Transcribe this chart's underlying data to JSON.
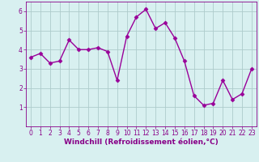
{
  "x": [
    0,
    1,
    2,
    3,
    4,
    5,
    6,
    7,
    8,
    9,
    10,
    11,
    12,
    13,
    14,
    15,
    16,
    17,
    18,
    19,
    20,
    21,
    22,
    23
  ],
  "y": [
    3.6,
    3.8,
    3.3,
    3.4,
    4.5,
    4.0,
    4.0,
    4.1,
    3.9,
    2.4,
    4.7,
    5.7,
    6.1,
    5.1,
    5.4,
    4.6,
    3.4,
    1.6,
    1.1,
    1.2,
    2.4,
    1.4,
    1.7,
    3.0
  ],
  "line_color": "#990099",
  "marker": "D",
  "marker_size": 2.5,
  "linewidth": 1.0,
  "xlabel": "Windchill (Refroidissement éolien,°C)",
  "xlabel_fontsize": 6.5,
  "xlim": [
    -0.5,
    23.5
  ],
  "ylim": [
    0,
    6.5
  ],
  "yticks": [
    1,
    2,
    3,
    4,
    5,
    6
  ],
  "xticks": [
    0,
    1,
    2,
    3,
    4,
    5,
    6,
    7,
    8,
    9,
    10,
    11,
    12,
    13,
    14,
    15,
    16,
    17,
    18,
    19,
    20,
    21,
    22,
    23
  ],
  "bg_color": "#d8f0f0",
  "grid_color": "#aecccc",
  "tick_fontsize": 5.5,
  "label_color": "#880088"
}
